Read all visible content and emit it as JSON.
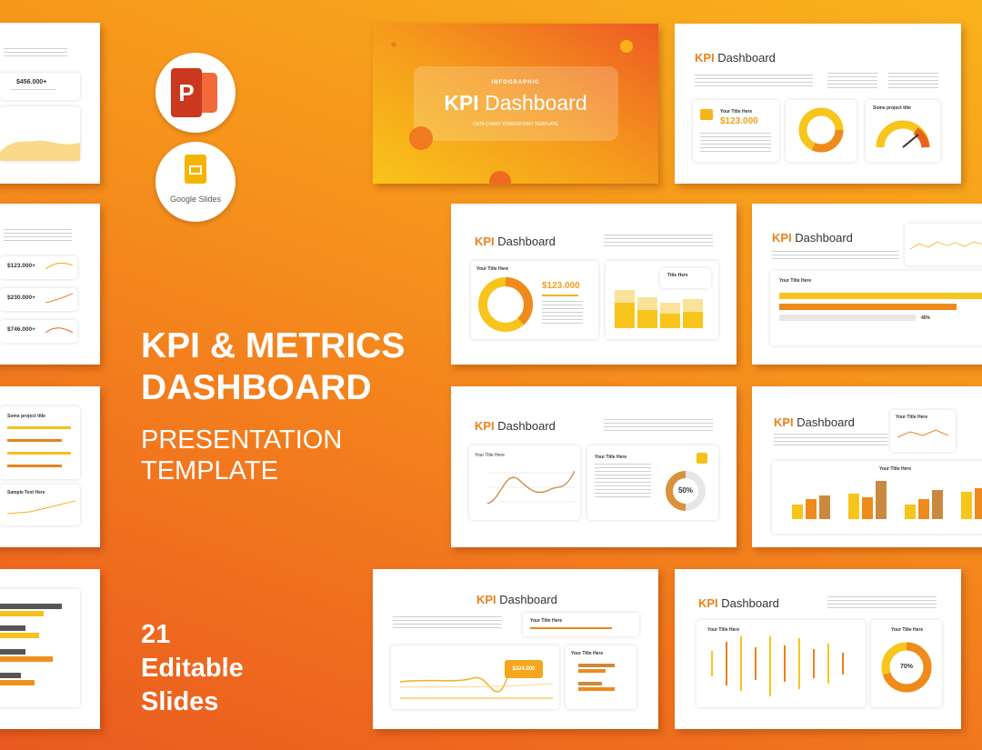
{
  "hero": {
    "title_lines": [
      "KPI & METRICS",
      "DASHBOARD"
    ],
    "subtitle_lines": [
      "PRESENTATION",
      "TEMPLATE"
    ],
    "count_lines": [
      "21",
      "Editable",
      "Slides"
    ]
  },
  "apps": {
    "powerpoint_letter": "P",
    "google_slides": "Google Slides"
  },
  "side_slides": {
    "first_value": "$456.000+",
    "values": [
      "$123.000+",
      "$230.000+",
      "$746.000+"
    ],
    "project_title": "Some project title",
    "sample_text": "Sample Text Here"
  },
  "cover": {
    "kicker": "INFOGRAPHIC",
    "title_accent": "KPI",
    "title": "Dashboard",
    "tagline": "DATA CHART POWERPOINT TEMPLATE"
  },
  "slides": [
    {
      "title_accent": "KPI",
      "title": "Dashboard",
      "card_title": "Your Title Here",
      "value": "$123.000",
      "gauge_title": "Some project title"
    },
    {
      "title_accent": "KPI",
      "title": "Dashboard",
      "card_title": "Your Title Here",
      "value": "$123.000",
      "chart_title": "Title Here"
    },
    {
      "title_accent": "KPI",
      "title": "Dashboard",
      "card_title": "Your Title Here",
      "percent": "40%"
    },
    {
      "title_accent": "KPI",
      "title": "Dashboard",
      "chart_title": "Your Title Here",
      "card_title": "Your Title Here",
      "percent": "50%"
    },
    {
      "title_accent": "KPI",
      "title": "Dashboard",
      "card_title": "Your Title Here",
      "chart_title": "Your Title Here"
    },
    {
      "title_accent": "KPI",
      "title": "Dashboard",
      "card_title": "Your Title Here",
      "chart_title": "Your Title Here",
      "value": "$324.000"
    },
    {
      "title_accent": "KPI",
      "title": "Dashboard",
      "chart_title": "Your Title Here",
      "card_title": "Your Title Here",
      "percent": "70%"
    }
  ]
}
